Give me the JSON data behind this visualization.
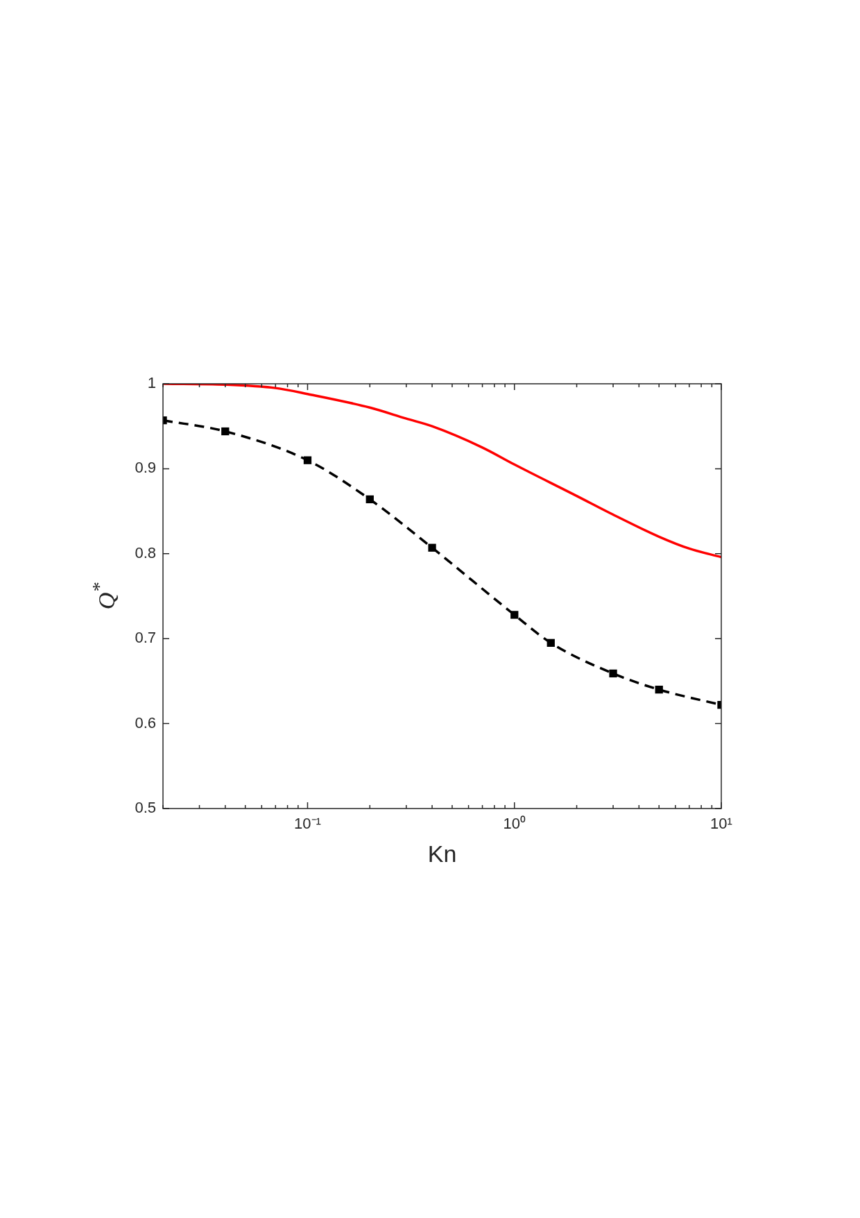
{
  "chart_data": {
    "type": "line",
    "xlabel": "Kn",
    "ylabel": "Q$^{*}$",
    "log": "x",
    "grid": false,
    "xlim": [
      0.02,
      10
    ],
    "ylim": [
      0.5,
      1
    ],
    "xticks": [
      {
        "value": 0.02,
        "label": null
      },
      {
        "value": 0.03,
        "label": null
      },
      {
        "value": 0.04,
        "label": null
      },
      {
        "value": 0.05,
        "label": null
      },
      {
        "value": 0.06,
        "label": null
      },
      {
        "value": 0.07,
        "label": null
      },
      {
        "value": 0.08,
        "label": null
      },
      {
        "value": 0.09,
        "label": null
      },
      {
        "value": 0.1,
        "label": "10⁻¹"
      },
      {
        "value": 0.2,
        "label": null
      },
      {
        "value": 0.3,
        "label": null
      },
      {
        "value": 0.4,
        "label": null
      },
      {
        "value": 0.5,
        "label": null
      },
      {
        "value": 0.6,
        "label": null
      },
      {
        "value": 0.7,
        "label": null
      },
      {
        "value": 0.8,
        "label": null
      },
      {
        "value": 0.9,
        "label": null
      },
      {
        "value": 1,
        "label": "10⁰"
      },
      {
        "value": 2,
        "label": null
      },
      {
        "value": 3,
        "label": null
      },
      {
        "value": 4,
        "label": null
      },
      {
        "value": 5,
        "label": null
      },
      {
        "value": 6,
        "label": null
      },
      {
        "value": 7,
        "label": null
      },
      {
        "value": 8,
        "label": null
      },
      {
        "value": 9,
        "label": null
      },
      {
        "value": 10,
        "label": "10¹"
      }
    ],
    "yticks": [
      0.5,
      0.6,
      0.7,
      0.8,
      0.9,
      1
    ],
    "series": [
      {
        "color": "#ff0000",
        "line_style": "solid",
        "marker": "none",
        "x": [
          0.02,
          0.04,
          0.07,
          0.1,
          0.2,
          0.3,
          0.4,
          0.7,
          1,
          2,
          3,
          5,
          7,
          10
        ],
        "values": [
          1.0,
          0.999,
          0.995,
          0.988,
          0.972,
          0.959,
          0.95,
          0.925,
          0.905,
          0.868,
          0.846,
          0.82,
          0.806,
          0.796
        ]
      },
      {
        "color": "#000000",
        "line_style": "dashed",
        "marker": "square",
        "x": [
          0.02,
          0.04,
          0.1,
          0.2,
          0.4,
          1,
          1.5,
          3,
          5,
          10
        ],
        "values": [
          0.957,
          0.944,
          0.91,
          0.864,
          0.807,
          0.728,
          0.695,
          0.659,
          0.64,
          0.622
        ]
      }
    ]
  }
}
